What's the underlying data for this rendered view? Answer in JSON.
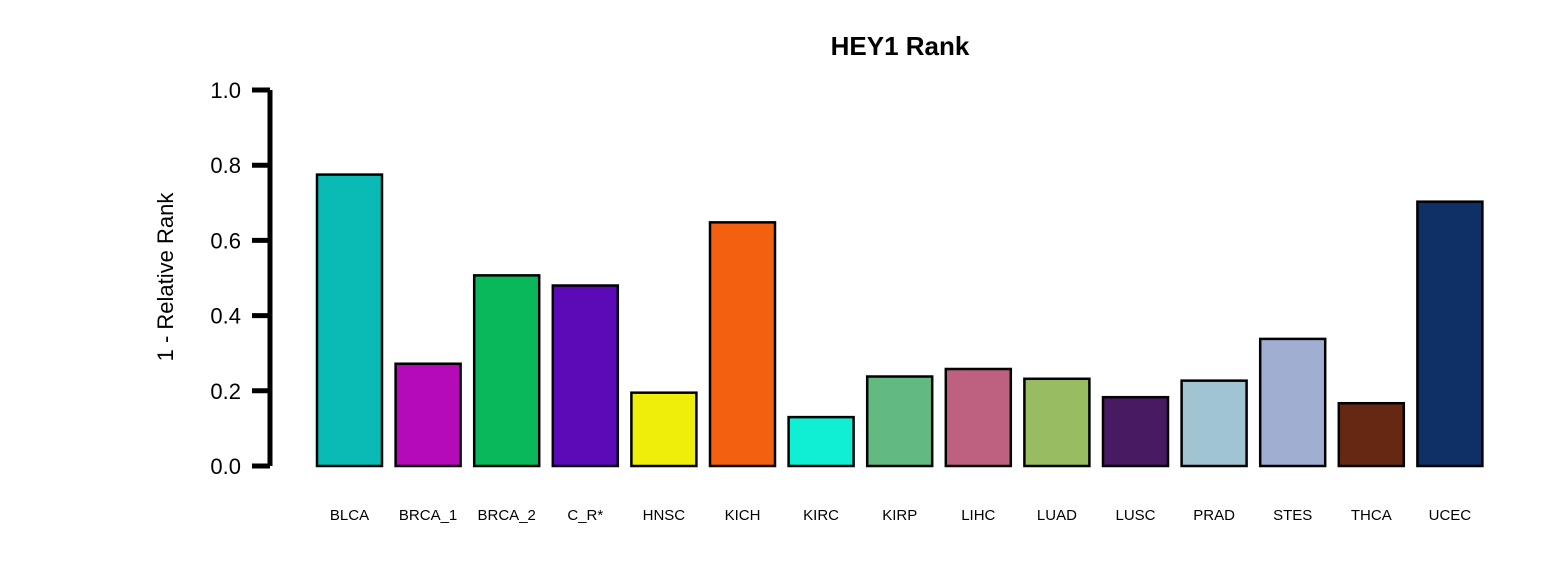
{
  "chart_data": {
    "type": "bar",
    "title": "HEY1 Rank",
    "xlabel": "",
    "ylabel": "1 - Relative Rank",
    "ylim": [
      0,
      1
    ],
    "yticks": [
      "0.0",
      "0.2",
      "0.4",
      "0.6",
      "0.8",
      "1.0"
    ],
    "categories": [
      "BLCA",
      "BRCA_1",
      "BRCA_2",
      "C_R*",
      "HNSC",
      "KICH",
      "KIRC",
      "KIRP",
      "LIHC",
      "LUAD",
      "LUSC",
      "PRAD",
      "STES",
      "THCA",
      "UCEC"
    ],
    "values": [
      0.775,
      0.272,
      0.507,
      0.48,
      0.195,
      0.648,
      0.13,
      0.238,
      0.258,
      0.232,
      0.183,
      0.227,
      0.338,
      0.167,
      0.703
    ],
    "colors": [
      "#0ABAB5",
      "#B40AB8",
      "#08B85A",
      "#5C0AB8",
      "#EEEE0A",
      "#F26010",
      "#10EED3",
      "#62BA80",
      "#BE6080",
      "#98BC62",
      "#481A62",
      "#A0C4D2",
      "#A0AED2",
      "#662812",
      "#0E3066"
    ],
    "legend": "none",
    "grid": false
  }
}
